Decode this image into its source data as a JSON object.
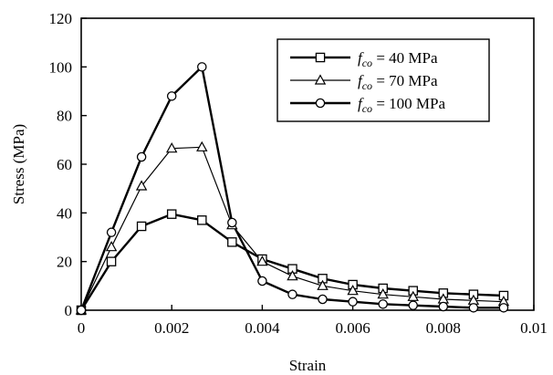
{
  "chart_data": {
    "type": "line",
    "xlabel": "Strain",
    "ylabel": "Stress (MPa)",
    "xlim": [
      0,
      0.01
    ],
    "ylim": [
      0,
      120
    ],
    "x_ticks": [
      "0",
      "0.002",
      "0.004",
      "0.006",
      "0.008",
      "0.01"
    ],
    "x_tick_values": [
      0,
      0.002,
      0.004,
      0.006,
      0.008,
      0.01
    ],
    "y_ticks": [
      "0",
      "20",
      "40",
      "60",
      "80",
      "100",
      "120"
    ],
    "y_tick_values": [
      0,
      20,
      40,
      60,
      80,
      100,
      120
    ],
    "grid": false,
    "legend_position": "top-right",
    "series": [
      {
        "name": "fco = 40 MPa",
        "legend_italic": "fco",
        "legend_rest": " = 40 MPa",
        "marker": "square",
        "line_width": 2.4,
        "color": "#000000",
        "x": [
          0,
          0.000667,
          0.001333,
          0.002,
          0.002667,
          0.003333,
          0.004,
          0.004667,
          0.005333,
          0.006,
          0.006667,
          0.007333,
          0.008,
          0.008667,
          0.009333
        ],
        "y": [
          0,
          20,
          34.5,
          39.5,
          37,
          28,
          21,
          17,
          13,
          10.5,
          9,
          8,
          7,
          6.5,
          6
        ]
      },
      {
        "name": "fco = 70 MPa",
        "legend_italic": "fco",
        "legend_rest": " = 70 MPa",
        "marker": "triangle",
        "line_width": 1.2,
        "color": "#000000",
        "x": [
          0,
          0.000667,
          0.001333,
          0.002,
          0.002667,
          0.003333,
          0.004,
          0.004667,
          0.005333,
          0.006,
          0.006667,
          0.007333,
          0.008,
          0.008667,
          0.009333
        ],
        "y": [
          0,
          26,
          51,
          66.5,
          67,
          35,
          20,
          14,
          10,
          8,
          6.5,
          5.5,
          4.5,
          4,
          3.5
        ]
      },
      {
        "name": "fco = 100 MPa",
        "legend_italic": "fco",
        "legend_rest": " = 100 MPa",
        "marker": "circle",
        "line_width": 2.4,
        "color": "#000000",
        "x": [
          0,
          0.000667,
          0.001333,
          0.002,
          0.002667,
          0.003333,
          0.004,
          0.004667,
          0.005333,
          0.006,
          0.006667,
          0.007333,
          0.008,
          0.008667,
          0.009333
        ],
        "y": [
          0,
          32,
          63,
          88,
          100,
          36,
          12,
          6.5,
          4.5,
          3.5,
          2.5,
          2,
          1.5,
          1,
          1
        ]
      }
    ]
  }
}
